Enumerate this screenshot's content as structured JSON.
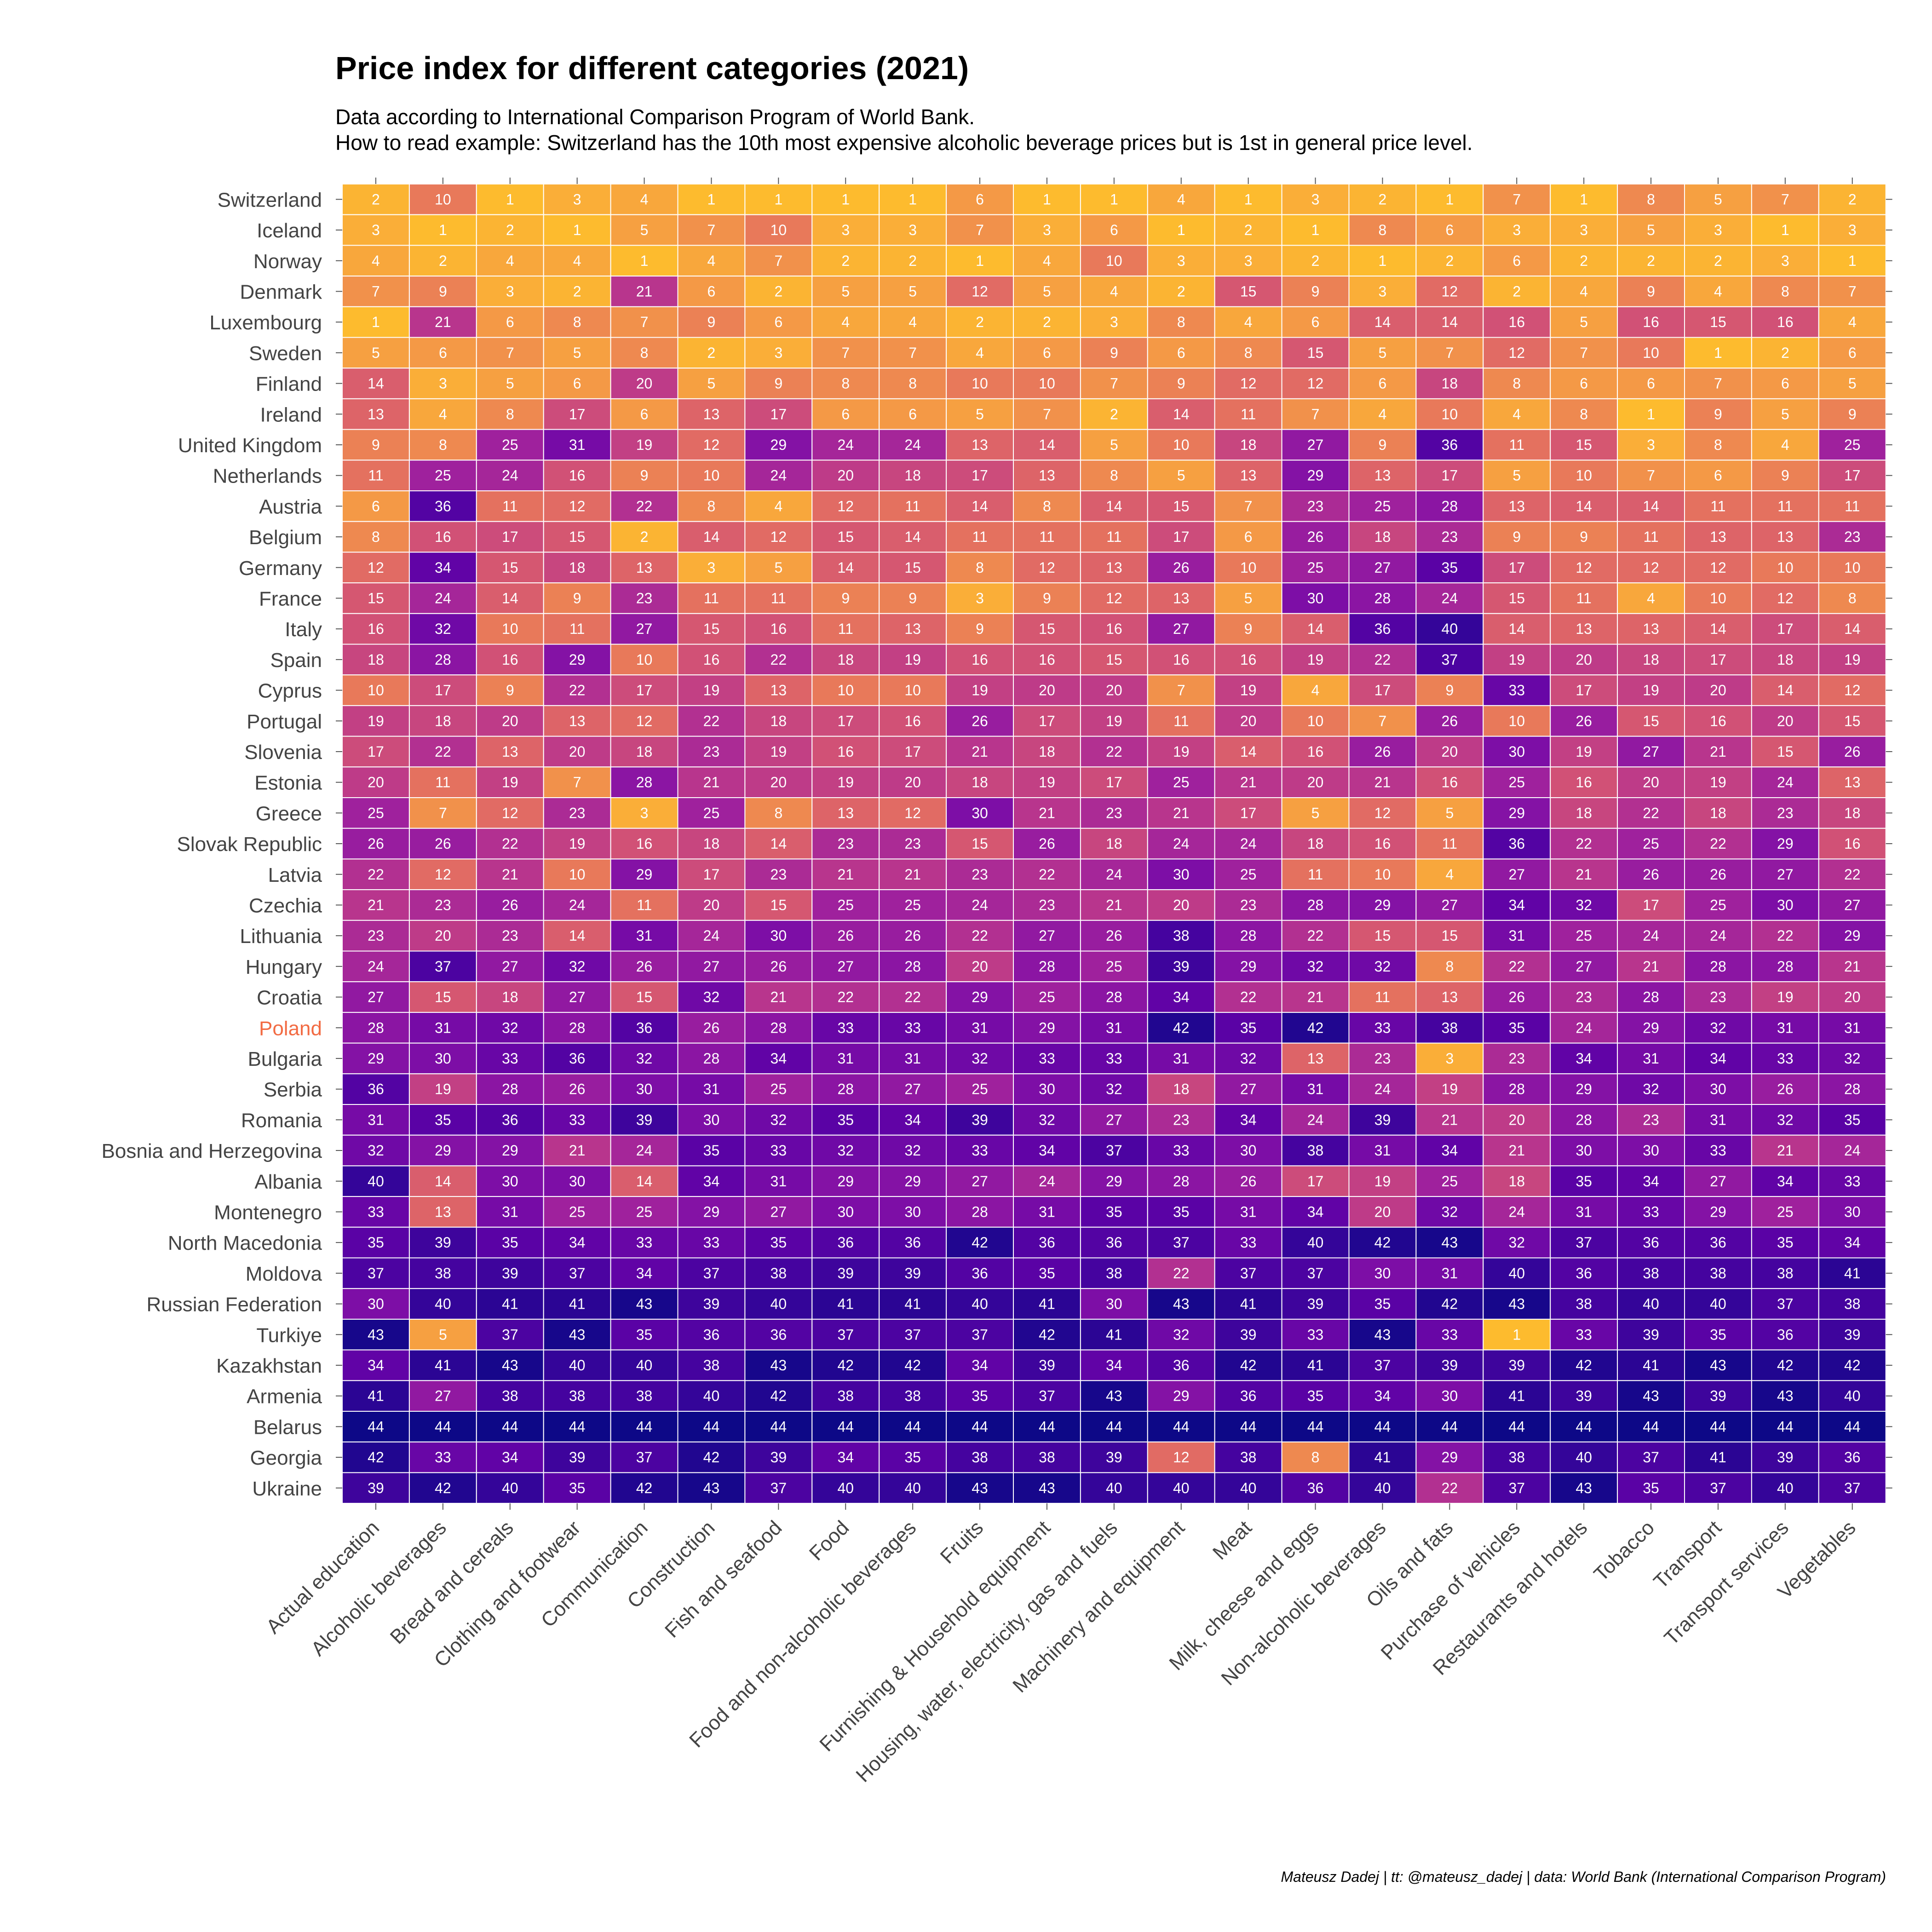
{
  "title": "Price index for different categories (2021)",
  "subtitle_line1": "Data according to International Comparison Program of World Bank.",
  "subtitle_line2": "How to read example: Switzerland has the 10th most expensive alcoholic beverage prices but is 1st in general price level.",
  "caption": "Mateusz Dadej | tt: @mateusz_dadej | data: World Bank (International Comparison Program)",
  "highlight": {
    "country": "Poland",
    "color": "#f26b43"
  },
  "colors": {
    "scale": [
      "#fdbb2e",
      "#f59b45",
      "#e6745d",
      "#d45573",
      "#bd3a89",
      "#a0219d",
      "#7f0fa6",
      "#5e02a6",
      "#3c049c",
      "#0d0887"
    ]
  },
  "chart_data": {
    "type": "heatmap",
    "value_min": 1,
    "value_max": 44,
    "rows": [
      "Switzerland",
      "Iceland",
      "Norway",
      "Denmark",
      "Luxembourg",
      "Sweden",
      "Finland",
      "Ireland",
      "United Kingdom",
      "Netherlands",
      "Austria",
      "Belgium",
      "Germany",
      "France",
      "Italy",
      "Spain",
      "Cyprus",
      "Portugal",
      "Slovenia",
      "Estonia",
      "Greece",
      "Slovak Republic",
      "Latvia",
      "Czechia",
      "Lithuania",
      "Hungary",
      "Croatia",
      "Poland",
      "Bulgaria",
      "Serbia",
      "Romania",
      "Bosnia and Herzegovina",
      "Albania",
      "Montenegro",
      "North Macedonia",
      "Moldova",
      "Russian Federation",
      "Turkiye",
      "Kazakhstan",
      "Armenia",
      "Belarus",
      "Georgia",
      "Ukraine"
    ],
    "columns": [
      "Actual education",
      "Alcoholic beverages",
      "Bread and cereals",
      "Clothing and footwear",
      "Communication",
      "Construction",
      "Fish and seafood",
      "Food",
      "Food and non-alcoholic beverages",
      "Fruits",
      "Furnishing & Household equipment",
      "Housing, water, electricity, gas and fuels",
      "Machinery and equipment",
      "Meat",
      "Milk, cheese and eggs",
      "Non-alcoholic beverages",
      "Oils and fats",
      "Purchase of vehicles",
      "Restaurants and hotels",
      "Tobacco",
      "Transport",
      "Transport services",
      "Vegetables"
    ],
    "values": [
      [
        2,
        10,
        1,
        3,
        4,
        1,
        1,
        1,
        1,
        6,
        1,
        1,
        4,
        1,
        3,
        2,
        1,
        7,
        1,
        8,
        5,
        7,
        2
      ],
      [
        3,
        1,
        2,
        1,
        5,
        7,
        10,
        3,
        3,
        7,
        3,
        6,
        1,
        2,
        1,
        8,
        6,
        3,
        3,
        5,
        3,
        1,
        3
      ],
      [
        4,
        2,
        4,
        4,
        1,
        4,
        7,
        2,
        2,
        1,
        4,
        10,
        3,
        3,
        2,
        1,
        2,
        6,
        2,
        2,
        2,
        3,
        1
      ],
      [
        7,
        9,
        3,
        2,
        21,
        6,
        2,
        5,
        5,
        12,
        5,
        4,
        2,
        15,
        9,
        3,
        12,
        2,
        4,
        9,
        4,
        8,
        7
      ],
      [
        1,
        21,
        6,
        8,
        7,
        9,
        6,
        4,
        4,
        2,
        2,
        3,
        8,
        4,
        6,
        14,
        14,
        16,
        5,
        16,
        15,
        16,
        4
      ],
      [
        5,
        6,
        7,
        5,
        8,
        2,
        3,
        7,
        7,
        4,
        6,
        9,
        6,
        8,
        15,
        5,
        7,
        12,
        7,
        10,
        1,
        2,
        6
      ],
      [
        14,
        3,
        5,
        6,
        20,
        5,
        9,
        8,
        8,
        10,
        10,
        7,
        9,
        12,
        12,
        6,
        18,
        8,
        6,
        6,
        7,
        6,
        5
      ],
      [
        13,
        4,
        8,
        17,
        6,
        13,
        17,
        6,
        6,
        5,
        7,
        2,
        14,
        11,
        7,
        4,
        10,
        4,
        8,
        1,
        9,
        5,
        9
      ],
      [
        9,
        8,
        25,
        31,
        19,
        12,
        29,
        24,
        24,
        13,
        14,
        5,
        10,
        18,
        27,
        9,
        36,
        11,
        15,
        3,
        8,
        4,
        25
      ],
      [
        11,
        25,
        24,
        16,
        9,
        10,
        24,
        20,
        18,
        17,
        13,
        8,
        5,
        13,
        29,
        13,
        17,
        5,
        10,
        7,
        6,
        9,
        17
      ],
      [
        6,
        36,
        11,
        12,
        22,
        8,
        4,
        12,
        11,
        14,
        8,
        14,
        15,
        7,
        23,
        25,
        28,
        13,
        14,
        14,
        11,
        11,
        11
      ],
      [
        8,
        16,
        17,
        15,
        2,
        14,
        12,
        15,
        14,
        11,
        11,
        11,
        17,
        6,
        26,
        18,
        23,
        9,
        9,
        11,
        13,
        13,
        23
      ],
      [
        12,
        34,
        15,
        18,
        13,
        3,
        5,
        14,
        15,
        8,
        12,
        13,
        26,
        10,
        25,
        27,
        35,
        17,
        12,
        12,
        12,
        10,
        10
      ],
      [
        15,
        24,
        14,
        9,
        23,
        11,
        11,
        9,
        9,
        3,
        9,
        12,
        13,
        5,
        30,
        28,
        24,
        15,
        11,
        4,
        10,
        12,
        8
      ],
      [
        16,
        32,
        10,
        11,
        27,
        15,
        16,
        11,
        13,
        9,
        15,
        16,
        27,
        9,
        14,
        36,
        40,
        14,
        13,
        13,
        14,
        17,
        14
      ],
      [
        18,
        28,
        16,
        29,
        10,
        16,
        22,
        18,
        19,
        16,
        16,
        15,
        16,
        16,
        19,
        22,
        37,
        19,
        20,
        18,
        17,
        18,
        19
      ],
      [
        10,
        17,
        9,
        22,
        17,
        19,
        13,
        10,
        10,
        19,
        20,
        20,
        7,
        19,
        4,
        17,
        9,
        33,
        17,
        19,
        20,
        14,
        12
      ],
      [
        19,
        18,
        20,
        13,
        12,
        22,
        18,
        17,
        16,
        26,
        17,
        19,
        11,
        20,
        10,
        7,
        26,
        10,
        26,
        15,
        16,
        20,
        15
      ],
      [
        17,
        22,
        13,
        20,
        18,
        23,
        19,
        16,
        17,
        21,
        18,
        22,
        19,
        14,
        16,
        26,
        20,
        30,
        19,
        27,
        21,
        15,
        26
      ],
      [
        20,
        11,
        19,
        7,
        28,
        21,
        20,
        19,
        20,
        18,
        19,
        17,
        25,
        21,
        20,
        21,
        16,
        25,
        16,
        20,
        19,
        24,
        13
      ],
      [
        25,
        7,
        12,
        23,
        3,
        25,
        8,
        13,
        12,
        30,
        21,
        23,
        21,
        17,
        5,
        12,
        5,
        29,
        18,
        22,
        18,
        23,
        18
      ],
      [
        26,
        26,
        22,
        19,
        16,
        18,
        14,
        23,
        23,
        15,
        26,
        18,
        24,
        24,
        18,
        16,
        11,
        36,
        22,
        25,
        22,
        29,
        16
      ],
      [
        22,
        12,
        21,
        10,
        29,
        17,
        23,
        21,
        21,
        23,
        22,
        24,
        30,
        25,
        11,
        10,
        4,
        27,
        21,
        26,
        26,
        27,
        22
      ],
      [
        21,
        23,
        26,
        24,
        11,
        20,
        15,
        25,
        25,
        24,
        23,
        21,
        20,
        23,
        28,
        29,
        27,
        34,
        32,
        17,
        25,
        30,
        27
      ],
      [
        23,
        20,
        23,
        14,
        31,
        24,
        30,
        26,
        26,
        22,
        27,
        26,
        38,
        28,
        22,
        15,
        15,
        31,
        25,
        24,
        24,
        22,
        29
      ],
      [
        24,
        37,
        27,
        32,
        26,
        27,
        26,
        27,
        28,
        20,
        28,
        25,
        39,
        29,
        32,
        32,
        8,
        22,
        27,
        21,
        28,
        28,
        21
      ],
      [
        27,
        15,
        18,
        27,
        15,
        32,
        21,
        22,
        22,
        29,
        25,
        28,
        34,
        22,
        21,
        11,
        13,
        26,
        23,
        28,
        23,
        19,
        20
      ],
      [
        28,
        31,
        32,
        28,
        36,
        26,
        28,
        33,
        33,
        31,
        29,
        31,
        42,
        35,
        42,
        33,
        38,
        35,
        24,
        29,
        32,
        31,
        31
      ],
      [
        29,
        30,
        33,
        36,
        32,
        28,
        34,
        31,
        31,
        32,
        33,
        33,
        31,
        32,
        13,
        23,
        3,
        23,
        34,
        31,
        34,
        33,
        32
      ],
      [
        36,
        19,
        28,
        26,
        30,
        31,
        25,
        28,
        27,
        25,
        30,
        32,
        18,
        27,
        31,
        24,
        19,
        28,
        29,
        32,
        30,
        26,
        28
      ],
      [
        31,
        35,
        36,
        33,
        39,
        30,
        32,
        35,
        34,
        39,
        32,
        27,
        23,
        34,
        24,
        39,
        21,
        20,
        28,
        23,
        31,
        32,
        35
      ],
      [
        32,
        29,
        29,
        21,
        24,
        35,
        33,
        32,
        32,
        33,
        34,
        37,
        33,
        30,
        38,
        31,
        34,
        21,
        30,
        30,
        33,
        21,
        24
      ],
      [
        40,
        14,
        30,
        30,
        14,
        34,
        31,
        29,
        29,
        27,
        24,
        29,
        28,
        26,
        17,
        19,
        25,
        18,
        35,
        34,
        27,
        34,
        33
      ],
      [
        33,
        13,
        31,
        25,
        25,
        29,
        27,
        30,
        30,
        28,
        31,
        35,
        35,
        31,
        34,
        20,
        32,
        24,
        31,
        33,
        29,
        25,
        30
      ],
      [
        35,
        39,
        35,
        34,
        33,
        33,
        35,
        36,
        36,
        42,
        36,
        36,
        37,
        33,
        40,
        42,
        43,
        32,
        37,
        36,
        36,
        35,
        34
      ],
      [
        37,
        38,
        39,
        37,
        34,
        37,
        38,
        39,
        39,
        36,
        35,
        38,
        22,
        37,
        37,
        30,
        31,
        40,
        36,
        38,
        38,
        38,
        41
      ],
      [
        30,
        40,
        41,
        41,
        43,
        39,
        40,
        41,
        41,
        40,
        41,
        30,
        43,
        41,
        39,
        35,
        42,
        43,
        38,
        40,
        40,
        37,
        38
      ],
      [
        43,
        5,
        37,
        43,
        35,
        36,
        36,
        37,
        37,
        37,
        42,
        41,
        32,
        39,
        33,
        43,
        33,
        1,
        33,
        39,
        35,
        36,
        39
      ],
      [
        34,
        41,
        43,
        40,
        40,
        38,
        43,
        42,
        42,
        34,
        39,
        34,
        36,
        42,
        41,
        37,
        39,
        39,
        42,
        41,
        43,
        42,
        42
      ],
      [
        41,
        27,
        38,
        38,
        38,
        40,
        42,
        38,
        38,
        35,
        37,
        43,
        29,
        36,
        35,
        34,
        30,
        41,
        39,
        43,
        39,
        43,
        40
      ],
      [
        44,
        44,
        44,
        44,
        44,
        44,
        44,
        44,
        44,
        44,
        44,
        44,
        44,
        44,
        44,
        44,
        44,
        44,
        44,
        44,
        44,
        44,
        44
      ],
      [
        42,
        33,
        34,
        39,
        37,
        42,
        39,
        34,
        35,
        38,
        38,
        39,
        12,
        38,
        8,
        41,
        29,
        38,
        40,
        37,
        41,
        39,
        36
      ],
      [
        39,
        42,
        40,
        35,
        42,
        43,
        37,
        40,
        40,
        43,
        43,
        40,
        40,
        40,
        36,
        40,
        22,
        37,
        43,
        35,
        37,
        40,
        37
      ]
    ]
  }
}
